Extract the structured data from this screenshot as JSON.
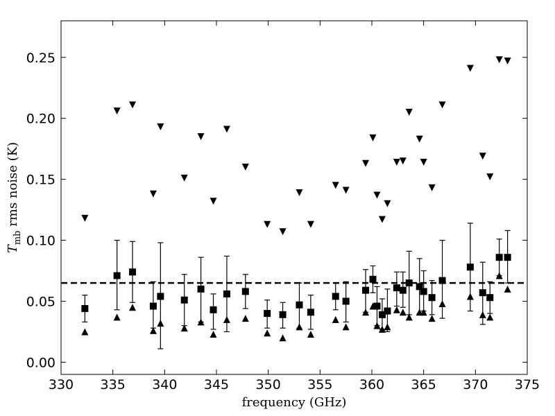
{
  "chart_data": {
    "type": "scatter",
    "xlabel": "frequency (GHz)",
    "ylabel_parts": [
      "T",
      "mb",
      " rms noise (K)"
    ],
    "xlim": [
      330,
      375
    ],
    "ylim": [
      -0.01,
      0.28
    ],
    "xticks": [
      330,
      335,
      340,
      345,
      350,
      355,
      360,
      365,
      370,
      375
    ],
    "yticks": [
      {
        "value": 0,
        "label": "0.00"
      },
      0.05,
      {
        "value": 0.1,
        "label": "0.10"
      },
      0.15,
      {
        "value": 0.2,
        "label": "0.20"
      },
      0.25
    ],
    "x": [
      332.3,
      335.4,
      336.9,
      338.9,
      339.6,
      341.9,
      343.5,
      344.7,
      346.0,
      347.8,
      349.9,
      351.4,
      353.0,
      354.1,
      356.5,
      357.5,
      359.4,
      360.1,
      360.5,
      361.0,
      361.5,
      362.4,
      363.0,
      363.6,
      364.6,
      365.0,
      365.8,
      366.8,
      369.5,
      370.7,
      371.4,
      372.3,
      373.1
    ],
    "series": [
      {
        "marker": "square",
        "color": "#000000",
        "values": [
          0.044,
          0.071,
          0.074,
          0.046,
          0.054,
          0.051,
          0.06,
          0.043,
          0.056,
          0.058,
          0.04,
          0.039,
          0.047,
          0.041,
          0.054,
          0.05,
          0.059,
          0.068,
          0.046,
          0.039,
          0.042,
          0.061,
          0.059,
          0.065,
          0.062,
          0.058,
          0.053,
          0.067,
          0.078,
          0.057,
          0.053,
          0.086,
          0.086
        ],
        "lower": [
          0.033,
          0.043,
          0.049,
          0.028,
          0.011,
          0.03,
          0.033,
          0.027,
          0.025,
          0.044,
          0.028,
          0.028,
          0.028,
          0.027,
          0.043,
          0.033,
          0.041,
          0.057,
          0.03,
          0.027,
          0.025,
          0.046,
          0.045,
          0.039,
          0.04,
          0.042,
          0.039,
          0.036,
          0.042,
          0.031,
          0.04,
          0.071,
          0.065
        ],
        "upper": [
          0.055,
          0.1,
          0.099,
          0.066,
          0.098,
          0.072,
          0.086,
          0.056,
          0.087,
          0.072,
          0.051,
          0.049,
          0.065,
          0.055,
          0.065,
          0.066,
          0.076,
          0.079,
          0.062,
          0.052,
          0.06,
          0.074,
          0.074,
          0.091,
          0.085,
          0.075,
          0.067,
          0.1,
          0.114,
          0.082,
          0.066,
          0.101,
          0.108
        ]
      },
      {
        "marker": "triangle-up",
        "color": "#000000",
        "values": [
          0.025,
          0.037,
          0.045,
          0.026,
          0.032,
          0.028,
          0.033,
          0.023,
          0.035,
          0.036,
          0.024,
          0.02,
          0.029,
          0.023,
          0.035,
          0.029,
          0.041,
          0.046,
          0.03,
          0.027,
          0.029,
          0.043,
          0.041,
          0.037,
          0.041,
          0.041,
          0.036,
          0.048,
          0.054,
          0.039,
          0.037,
          0.071,
          0.06
        ]
      },
      {
        "marker": "triangle-down",
        "color": "#000000",
        "values": [
          0.118,
          0.206,
          0.211,
          0.138,
          0.193,
          0.151,
          0.185,
          0.132,
          0.191,
          0.16,
          0.113,
          0.107,
          0.139,
          0.113,
          0.145,
          0.141,
          0.163,
          0.184,
          0.137,
          0.117,
          0.13,
          0.164,
          0.165,
          0.205,
          0.183,
          0.164,
          0.143,
          0.211,
          0.241,
          0.169,
          0.152,
          0.248,
          0.247
        ]
      }
    ],
    "hlines": [
      {
        "value": 0.065,
        "style": "dashed",
        "color": "#000000"
      }
    ]
  }
}
